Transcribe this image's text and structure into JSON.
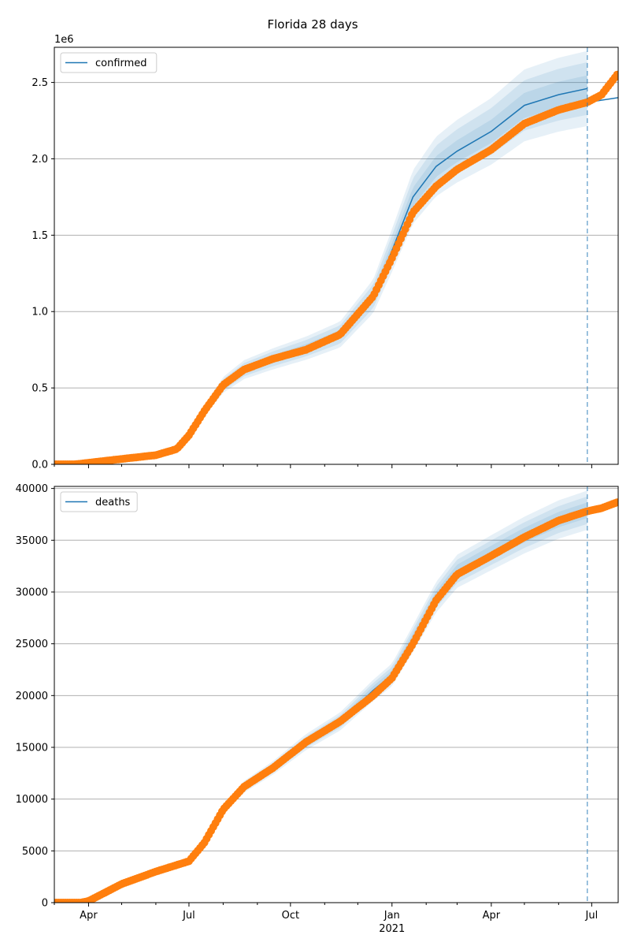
{
  "title": "Florida 28 days",
  "colors": {
    "model": "#1f77b4",
    "observed": "#ff7f0e",
    "band": "#1f77b4",
    "grid": "#b0b0b0",
    "forecast_line": "#1f77b4"
  },
  "x_axis": {
    "month_ticks": [
      {
        "date": "2020-04-01",
        "label": "Apr"
      },
      {
        "date": "2020-07-01",
        "label": "Jul"
      },
      {
        "date": "2020-10-01",
        "label": "Oct"
      },
      {
        "date": "2021-01-01",
        "label": "Jan"
      },
      {
        "date": "2021-04-01",
        "label": "Apr"
      },
      {
        "date": "2021-07-01",
        "label": "Jul"
      }
    ],
    "year_label": "2021",
    "year_label_date": "2021-01-01",
    "range": [
      "2020-03-01",
      "2021-07-25"
    ],
    "forecast_start": "2021-06-27"
  },
  "chart_data": [
    {
      "type": "line",
      "legend": "confirmed",
      "exponent_label": "1e6",
      "ylim": [
        0,
        2730000
      ],
      "yticks": [
        {
          "value": 0,
          "label": "0.0"
        },
        {
          "value": 500000,
          "label": "0.5"
        },
        {
          "value": 1000000,
          "label": "1.0"
        },
        {
          "value": 1500000,
          "label": "1.5"
        },
        {
          "value": 2000000,
          "label": "2.0"
        },
        {
          "value": 2500000,
          "label": "2.5"
        }
      ],
      "grid": "horizontal",
      "legend_position": "top-left",
      "model": {
        "name": "confirmed",
        "dates": [
          "2020-03-01",
          "2020-04-01",
          "2020-05-01",
          "2020-06-01",
          "2020-06-20",
          "2020-07-01",
          "2020-07-15",
          "2020-08-01",
          "2020-08-20",
          "2020-09-15",
          "2020-10-15",
          "2020-11-15",
          "2020-12-15",
          "2021-01-01",
          "2021-01-20",
          "2021-02-10",
          "2021-03-01",
          "2021-04-01",
          "2021-05-01",
          "2021-06-01",
          "2021-06-27"
        ],
        "values": [
          0,
          10000,
          35000,
          60000,
          100000,
          190000,
          350000,
          520000,
          620000,
          690000,
          760000,
          850000,
          1100000,
          1400000,
          1750000,
          1950000,
          2050000,
          2180000,
          2350000,
          2420000,
          2460000
        ],
        "after_dates": [
          "2021-06-27",
          "2021-07-25"
        ],
        "after_values": [
          2370000,
          2400000
        ],
        "band_spread": [
          0.035,
          0.07,
          0.1
        ]
      },
      "observed": {
        "name": "confirmed observed",
        "dates": [
          "2020-03-01",
          "2020-03-20",
          "2020-04-01",
          "2020-05-01",
          "2020-06-01",
          "2020-06-20",
          "2020-07-01",
          "2020-07-15",
          "2020-08-01",
          "2020-08-20",
          "2020-09-15",
          "2020-10-15",
          "2020-11-15",
          "2020-12-15",
          "2021-01-01",
          "2021-01-20",
          "2021-02-10",
          "2021-03-01",
          "2021-04-01",
          "2021-05-01",
          "2021-06-01",
          "2021-06-27",
          "2021-07-10",
          "2021-07-25"
        ],
        "values": [
          0,
          0,
          10000,
          35000,
          60000,
          100000,
          190000,
          350000,
          520000,
          620000,
          690000,
          750000,
          850000,
          1100000,
          1350000,
          1650000,
          1820000,
          1930000,
          2060000,
          2230000,
          2320000,
          2370000,
          2420000,
          2560000
        ]
      }
    },
    {
      "type": "line",
      "legend": "deaths",
      "ylim": [
        0,
        40200
      ],
      "yticks": [
        {
          "value": 0,
          "label": "0"
        },
        {
          "value": 5000,
          "label": "5000"
        },
        {
          "value": 10000,
          "label": "10000"
        },
        {
          "value": 15000,
          "label": "15000"
        },
        {
          "value": 20000,
          "label": "20000"
        },
        {
          "value": 25000,
          "label": "25000"
        },
        {
          "value": 30000,
          "label": "30000"
        },
        {
          "value": 35000,
          "label": "35000"
        },
        {
          "value": 40000,
          "label": "40000"
        }
      ],
      "grid": "horizontal",
      "legend_position": "top-left",
      "model": {
        "name": "deaths",
        "dates": [
          "2020-03-01",
          "2020-03-25",
          "2020-04-01",
          "2020-05-01",
          "2020-06-01",
          "2020-07-01",
          "2020-07-15",
          "2020-08-01",
          "2020-08-20",
          "2020-09-15",
          "2020-10-15",
          "2020-11-15",
          "2020-12-15",
          "2021-01-01",
          "2021-01-20",
          "2021-02-10",
          "2021-03-01",
          "2021-04-01",
          "2021-05-01",
          "2021-06-01",
          "2021-06-27"
        ],
        "values": [
          0,
          0,
          150,
          1800,
          3000,
          4000,
          5800,
          9000,
          11200,
          13000,
          15500,
          17500,
          20500,
          22000,
          25500,
          29500,
          32000,
          33800,
          35500,
          37000,
          37900
        ],
        "band_spread": [
          0.02,
          0.035,
          0.05
        ]
      },
      "observed": {
        "name": "deaths observed",
        "dates": [
          "2020-03-01",
          "2020-03-25",
          "2020-04-01",
          "2020-05-01",
          "2020-06-01",
          "2020-07-01",
          "2020-07-15",
          "2020-08-01",
          "2020-08-20",
          "2020-09-15",
          "2020-10-15",
          "2020-11-15",
          "2020-12-15",
          "2021-01-01",
          "2021-01-20",
          "2021-02-10",
          "2021-03-01",
          "2021-04-01",
          "2021-05-01",
          "2021-06-01",
          "2021-06-27",
          "2021-07-10",
          "2021-07-25"
        ],
        "values": [
          0,
          0,
          150,
          1800,
          3000,
          4000,
          5800,
          9000,
          11200,
          13000,
          15500,
          17500,
          20000,
          21700,
          25000,
          29200,
          31700,
          33500,
          35300,
          36900,
          37800,
          38100,
          38700
        ]
      }
    }
  ]
}
